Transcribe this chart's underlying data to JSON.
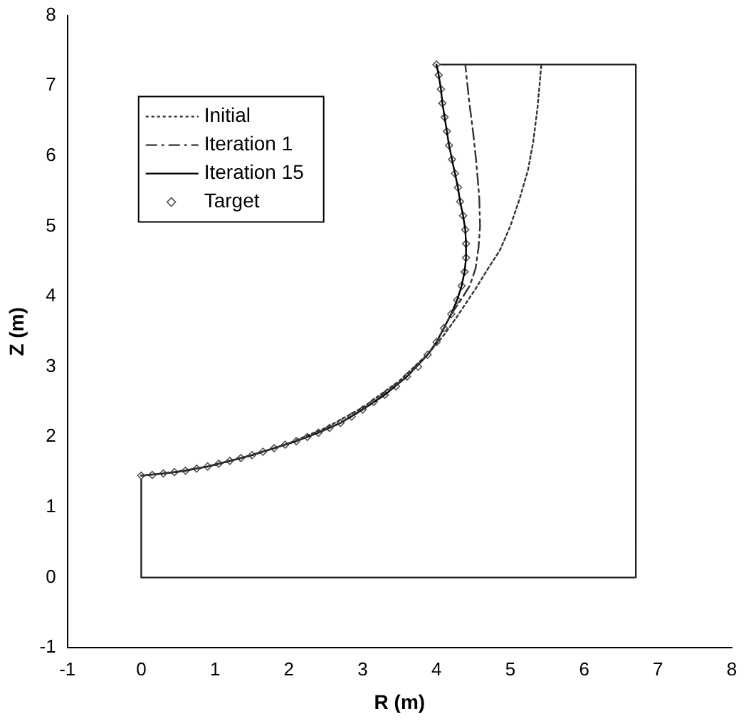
{
  "chart_data": {
    "type": "line",
    "xlabel": "R (m)",
    "ylabel": "Z (m)",
    "xlim": [
      -1,
      8
    ],
    "xticks": [
      -1,
      0,
      1,
      2,
      3,
      4,
      5,
      6,
      7,
      8
    ],
    "ylim": [
      -1,
      8
    ],
    "yticks": [
      -1,
      0,
      1,
      2,
      3,
      4,
      5,
      6,
      7,
      8
    ],
    "grid": false,
    "legend": "top left",
    "series": [
      {
        "name": "Initial",
        "type": "line",
        "color": "#333333",
        "line_style": "dotted",
        "marker": "none",
        "x": [
          0,
          0.5,
          1,
          1.5,
          2,
          2.5,
          3,
          3.5,
          3.9,
          4.1,
          4.27,
          4.53,
          4.7,
          4.86,
          5.0,
          5.12,
          5.24,
          5.31,
          5.37,
          5.42
        ],
        "values": [
          1.45,
          1.5,
          1.6,
          1.74,
          1.91,
          2.13,
          2.42,
          2.8,
          3.2,
          3.45,
          3.7,
          4.11,
          4.4,
          4.66,
          5.0,
          5.37,
          5.8,
          6.2,
          6.7,
          7.3
        ]
      },
      {
        "name": "Iteration 1",
        "type": "line",
        "color": "#333333",
        "line_style": "dashed",
        "marker": "none",
        "x": [
          0,
          0.45,
          0.9,
          1.35,
          1.8,
          2.25,
          2.7,
          3.15,
          3.6,
          3.88,
          4.0,
          4.1,
          4.2,
          4.33,
          4.45,
          4.53,
          4.57,
          4.59,
          4.58,
          4.54,
          4.5,
          4.44,
          4.39
        ],
        "values": [
          1.45,
          1.5,
          1.58,
          1.7,
          1.84,
          2.0,
          2.2,
          2.5,
          2.86,
          3.17,
          3.35,
          3.55,
          3.75,
          3.95,
          4.15,
          4.4,
          4.7,
          5.0,
          5.4,
          5.9,
          6.3,
          6.8,
          7.3
        ]
      },
      {
        "name": "Iteration 15",
        "type": "line",
        "color": "#000000",
        "line_style": "solid",
        "marker": "none",
        "x": [
          0,
          0.3,
          0.6,
          0.9,
          1.2,
          1.5,
          1.8,
          2.1,
          2.4,
          2.7,
          3.0,
          3.3,
          3.6,
          3.88,
          4.0,
          4.1,
          4.2,
          4.28,
          4.34,
          4.38,
          4.4,
          4.4,
          4.39,
          4.36,
          4.32,
          4.29,
          4.25,
          4.21,
          4.17,
          4.14,
          4.11,
          4.08,
          4.06,
          4.03,
          4.0
        ],
        "values": [
          1.45,
          1.48,
          1.52,
          1.58,
          1.66,
          1.74,
          1.84,
          1.94,
          2.06,
          2.2,
          2.39,
          2.6,
          2.86,
          3.17,
          3.35,
          3.55,
          3.75,
          3.95,
          4.15,
          4.35,
          4.55,
          4.75,
          4.95,
          5.15,
          5.35,
          5.55,
          5.75,
          5.95,
          6.15,
          6.35,
          6.55,
          6.75,
          6.95,
          7.15,
          7.3
        ]
      },
      {
        "name": "Target",
        "type": "scatter",
        "color": "#555555",
        "marker": "diamond",
        "x": [
          0,
          0.15,
          0.3,
          0.45,
          0.6,
          0.75,
          0.9,
          1.05,
          1.2,
          1.35,
          1.5,
          1.65,
          1.8,
          1.95,
          2.1,
          2.25,
          2.4,
          2.55,
          2.7,
          2.85,
          3.0,
          3.15,
          3.3,
          3.45,
          3.6,
          3.75,
          3.88,
          4.0,
          4.1,
          4.2,
          4.28,
          4.34,
          4.38,
          4.4,
          4.4,
          4.39,
          4.36,
          4.32,
          4.29,
          4.25,
          4.21,
          4.17,
          4.14,
          4.11,
          4.08,
          4.06,
          4.03,
          4.0
        ],
        "values": [
          1.45,
          1.46,
          1.48,
          1.5,
          1.52,
          1.55,
          1.58,
          1.62,
          1.66,
          1.7,
          1.74,
          1.79,
          1.84,
          1.89,
          1.94,
          2.0,
          2.06,
          2.13,
          2.2,
          2.29,
          2.39,
          2.5,
          2.6,
          2.72,
          2.86,
          3.0,
          3.17,
          3.35,
          3.55,
          3.75,
          3.95,
          4.15,
          4.35,
          4.55,
          4.75,
          4.95,
          5.15,
          5.35,
          5.55,
          5.75,
          5.95,
          6.15,
          6.35,
          6.55,
          6.75,
          6.95,
          7.15,
          7.3
        ]
      },
      {
        "type": "line",
        "color": "#222222",
        "line_style": "solid",
        "marker": "none",
        "x": [
          4.0,
          6.7,
          6.7,
          0,
          0
        ],
        "values": [
          7.3,
          7.3,
          0,
          0,
          1.45
        ]
      }
    ]
  }
}
